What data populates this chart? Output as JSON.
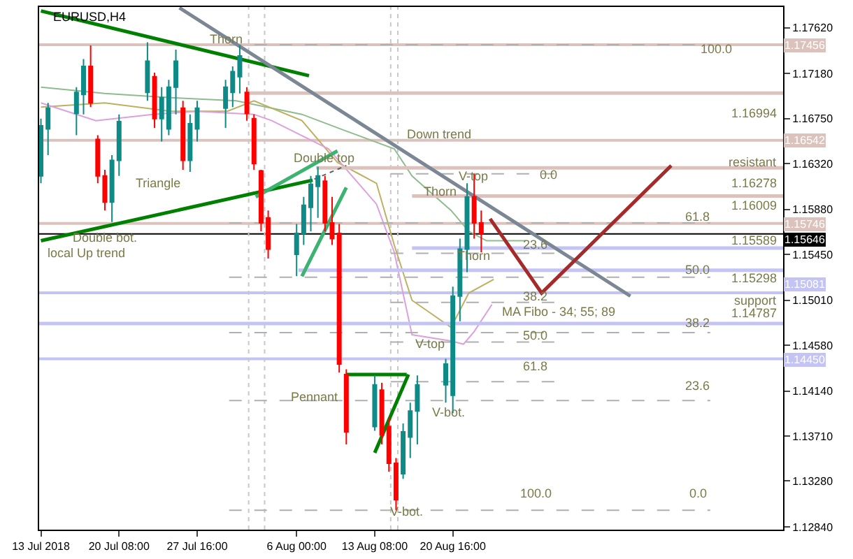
{
  "chart_data": {
    "type": "candlestick",
    "title": "EURUSD,H4",
    "grid": false,
    "xlim": [
      "2018-07-12T20:00",
      "2018-09-20T16:00"
    ],
    "xticks": [
      {
        "value": "2018-07-13T00:00",
        "label": "13 Jul 2018"
      },
      {
        "value": "2018-07-20T08:00",
        "label": "20 Jul 08:00"
      },
      {
        "value": "2018-07-27T16:00",
        "label": "27 Jul 16:00"
      },
      {
        "value": "2018-08-06T00:00",
        "label": "6 Aug 00:00"
      },
      {
        "value": "2018-08-13T08:00",
        "label": "13 Aug 08:00"
      },
      {
        "value": "2018-08-20T16:00",
        "label": "20 Aug 16:00"
      }
    ],
    "ylim": [
      1.12814,
      1.17818
    ],
    "yticks": [
      {
        "value": 1.1762,
        "label": "1.17620"
      },
      {
        "value": 1.1718,
        "label": "1.17180"
      },
      {
        "value": 1.1675,
        "label": "1.16750"
      },
      {
        "value": 1.1632,
        "label": "1.16320"
      },
      {
        "value": 1.1588,
        "label": "1.15880"
      },
      {
        "value": 1.1545,
        "label": "1.15450"
      },
      {
        "value": 1.1501,
        "label": "1.15010"
      },
      {
        "value": 1.1458,
        "label": "1.14580"
      },
      {
        "value": 1.1414,
        "label": "1.14140"
      },
      {
        "value": 1.1371,
        "label": "1.13710"
      },
      {
        "value": 1.1328,
        "label": "1.13280"
      },
      {
        "value": 1.1284,
        "label": "1.12840"
      }
    ],
    "series": [
      {
        "type": "line",
        "color": "#8fbc8f",
        "x": [
          "2018-07-13T00:00",
          "2018-07-19T00:00",
          "2018-07-25T04:00",
          "2018-07-31T08:00",
          "2018-08-06T12:00",
          "2018-08-10T16:00",
          "2018-08-15T04:00",
          "2018-08-16T20:00",
          "2018-08-20T12:00",
          "2018-08-22T04:00",
          "2018-08-23T20:00",
          "2018-08-27T12:00"
        ],
        "values": [
          1.1705,
          1.1699,
          1.1695,
          1.1692,
          1.1679,
          1.1663,
          1.1646,
          1.162,
          1.1587,
          1.1567,
          1.1558,
          1.1558
        ]
      },
      {
        "type": "line",
        "color": "#bdb060",
        "x": [
          "2018-07-13T00:00",
          "2018-07-19T00:00",
          "2018-07-25T04:00",
          "2018-07-30T12:00",
          "2018-08-02T00:00",
          "2018-08-06T12:00",
          "2018-08-09T20:00",
          "2018-08-13T12:00",
          "2018-08-15T04:00",
          "2018-08-16T20:00",
          "2018-08-20T12:00",
          "2018-08-22T04:00",
          "2018-08-24T12:00"
        ],
        "values": [
          1.1686,
          1.169,
          1.1682,
          1.1682,
          1.1692,
          1.1673,
          1.1633,
          1.1613,
          1.1554,
          1.1501,
          1.1475,
          1.1508,
          1.1521
        ]
      },
      {
        "type": "line",
        "color": "#dda0dd",
        "x": [
          "2018-07-13T00:00",
          "2018-07-18T04:00",
          "2018-07-23T12:00",
          "2018-07-27T16:00",
          "2018-08-02T00:00",
          "2018-08-03T16:00",
          "2018-08-09T00:00",
          "2018-08-13T12:00",
          "2018-08-15T04:00",
          "2018-08-16T20:00",
          "2018-08-20T12:00",
          "2018-08-21T16:00",
          "2018-08-22T16:00",
          "2018-08-24T08:00"
        ],
        "values": [
          1.169,
          1.1673,
          1.1679,
          1.1682,
          1.1679,
          1.1673,
          1.1646,
          1.1593,
          1.1547,
          1.1468,
          1.1462,
          1.1459,
          1.1471,
          1.1497
        ]
      },
      {
        "type": "line",
        "color": "#b0b0b0",
        "line_style": "dashed",
        "x": [
          "2018-07-30T16:00",
          "2018-09-13T20:00"
        ],
        "values": [
          1.17456,
          1.17456
        ]
      },
      {
        "type": "line",
        "color": "#b0b0b0",
        "line_style": "dashed",
        "x": [
          "2018-07-30T16:00",
          "2018-09-13T20:00"
        ],
        "values": [
          1.1575,
          1.1575
        ]
      },
      {
        "type": "line",
        "color": "#b0b0b0",
        "line_style": "dashed",
        "x": [
          "2018-07-30T16:00",
          "2018-09-13T20:00"
        ],
        "values": [
          1.1523,
          1.1523
        ]
      },
      {
        "type": "line",
        "color": "#b0b0b0",
        "line_style": "dashed",
        "x": [
          "2018-07-30T16:00",
          "2018-09-13T20:00"
        ],
        "values": [
          1.147,
          1.147
        ]
      },
      {
        "type": "line",
        "color": "#b0b0b0",
        "line_style": "dashed",
        "x": [
          "2018-07-30T16:00",
          "2018-09-13T20:00"
        ],
        "values": [
          1.1405,
          1.1405
        ]
      },
      {
        "type": "line",
        "color": "#b0b0b0",
        "line_style": "dashed",
        "x": [
          "2018-07-30T16:00",
          "2018-09-13T20:00"
        ],
        "values": [
          1.13,
          1.13
        ]
      },
      {
        "type": "line",
        "color": "#b0b0b0",
        "line_style": "dashed",
        "x": [
          "2018-08-14T20:00",
          "2018-08-30T08:00"
        ],
        "values": [
          1.1622,
          1.1622
        ]
      },
      {
        "type": "line",
        "color": "#b0b0b0",
        "line_style": "dashed",
        "x": [
          "2018-08-14T20:00",
          "2018-08-30T08:00"
        ],
        "values": [
          1.1546,
          1.1546
        ]
      },
      {
        "type": "line",
        "color": "#b0b0b0",
        "line_style": "dashed",
        "x": [
          "2018-08-14T20:00",
          "2018-08-30T08:00"
        ],
        "values": [
          1.1499,
          1.1499
        ]
      },
      {
        "type": "line",
        "color": "#b0b0b0",
        "line_style": "dashed",
        "x": [
          "2018-08-14T20:00",
          "2018-08-30T08:00"
        ],
        "values": [
          1.1461,
          1.1461
        ]
      },
      {
        "type": "line",
        "color": "#b0b0b0",
        "line_style": "dashed",
        "x": [
          "2018-08-14T20:00",
          "2018-08-30T08:00"
        ],
        "values": [
          1.1423,
          1.1423
        ]
      },
      {
        "type": "line",
        "color": "#dcc2bc",
        "x": [
          "2018-08-01T12:00",
          "2018-09-20T16:00"
        ],
        "values": [
          1.16994,
          1.16994
        ]
      },
      {
        "type": "line",
        "color": "#dcc2bc",
        "x": [
          "2018-08-07T20:00",
          "2018-09-20T16:00"
        ],
        "values": [
          1.16278,
          1.16278
        ]
      },
      {
        "type": "line",
        "color": "#dcc2bc",
        "x": [
          "2018-08-16T20:00",
          "2018-09-20T16:00"
        ],
        "values": [
          1.16009,
          1.16009
        ]
      },
      {
        "type": "line",
        "color": "#c4c4f4",
        "x": [
          "2018-08-16T20:00",
          "2018-09-20T16:00"
        ],
        "values": [
          1.1551,
          1.1551
        ]
      },
      {
        "type": "line",
        "color": "#c4c4f4",
        "x": [
          "2018-08-06T04:00",
          "2018-09-20T16:00"
        ],
        "values": [
          1.15298,
          1.15298
        ]
      },
      {
        "type": "line",
        "color": "#c4c4f4",
        "x": [
          "2018-07-12T20:00",
          "2018-09-20T16:00"
        ],
        "values": [
          1.14787,
          1.14787
        ]
      },
      {
        "type": "line",
        "color": "#008000",
        "x": [
          "2018-07-13T00:00",
          "2018-08-07T04:00"
        ],
        "values": [
          1.1778,
          1.1716
        ]
      },
      {
        "type": "line",
        "color": "#008000",
        "x": [
          "2018-07-13T00:00",
          "2018-08-07T12:00"
        ],
        "values": [
          1.1558,
          1.1616
        ]
      },
      {
        "type": "line",
        "color": "#3cb371",
        "x": [
          "2018-08-02T04:00",
          "2018-08-09T20:00"
        ],
        "values": [
          1.16,
          1.1644
        ]
      },
      {
        "type": "line",
        "color": "#3cb371",
        "x": [
          "2018-08-06T12:00",
          "2018-08-10T16:00"
        ],
        "values": [
          1.1524,
          1.1609
        ]
      },
      {
        "type": "line",
        "color": "#606060",
        "line_style": "dotted",
        "x": [
          "2018-08-07T16:00",
          "2018-08-10T16:00"
        ],
        "values": [
          1.1617,
          1.163
        ]
      },
      {
        "type": "line",
        "color": "#008000",
        "x": [
          "2018-08-10T16:00",
          "2018-08-16T08:00"
        ],
        "values": [
          1.143,
          1.143
        ]
      },
      {
        "type": "line",
        "color": "#008000",
        "x": [
          "2018-08-13T08:00",
          "2018-08-16T12:00"
        ],
        "values": [
          1.1355,
          1.143
        ]
      },
      {
        "type": "line",
        "color": "#7b8794",
        "x": [
          "2018-07-26T00:00",
          "2018-09-06T08:00"
        ],
        "values": [
          1.1781,
          1.1505
        ]
      },
      {
        "type": "line",
        "color": "#a52a2a",
        "x": [
          "2018-08-24T04:00",
          "2018-08-29T00:00",
          "2018-09-10T04:00"
        ],
        "values": [
          1.1579,
          1.1508,
          1.163
        ]
      },
      {
        "x": [
          "2018-07-13T00:00",
          "2018-07-13T16:00",
          "2018-07-16T08:00",
          "2018-07-17T00:00",
          "2018-07-17T16:00",
          "2018-07-18T08:00",
          "2018-07-19T00:00",
          "2018-07-19T16:00",
          "2018-07-20T08:00",
          "2018-07-23T00:00",
          "2018-07-23T16:00",
          "2018-07-24T08:00",
          "2018-07-25T00:00",
          "2018-07-25T16:00",
          "2018-07-26T08:00",
          "2018-07-27T00:00",
          "2018-07-27T16:00",
          "2018-07-30T08:00",
          "2018-07-31T00:00",
          "2018-07-31T16:00",
          "2018-08-01T08:00",
          "2018-08-02T00:00",
          "2018-08-02T16:00",
          "2018-08-03T08:00",
          "2018-08-06T00:00",
          "2018-08-06T16:00",
          "2018-08-07T08:00",
          "2018-08-08T00:00",
          "2018-08-08T16:00",
          "2018-08-09T08:00",
          "2018-08-10T00:00",
          "2018-08-10T16:00",
          "2018-08-13T08:00",
          "2018-08-14T00:00",
          "2018-08-14T16:00",
          "2018-08-15T08:00",
          "2018-08-16T00:00",
          "2018-08-16T16:00",
          "2018-08-17T08:00",
          "2018-08-20T00:00",
          "2018-08-20T16:00",
          "2018-08-21T08:00",
          "2018-08-22T00:00",
          "2018-08-22T16:00",
          "2018-08-23T08:00"
        ],
        "colors": [
          "#0e8a87",
          "#0e8a87",
          "#0e8a87",
          "#0e8a87",
          "#ff0000",
          "#ff0000",
          "#ff0000",
          "#0e8a87",
          "#0e8a87",
          "#0e8a87",
          "#ff0000",
          "#0e8a87",
          "#0e8a87",
          "#0e8a87",
          "#ff0000",
          "#0e8a87",
          "#0e8a87",
          "#0e8a87",
          "#0e8a87",
          "#0e8a87",
          "#ff0000",
          "#ff0000",
          "#ff0000",
          "#ff0000",
          "#0e8a87",
          "#0e8a87",
          "#0e8a87",
          "#0e8a87",
          "#ff0000",
          "#ff0000",
          "#ff0000",
          "#ff0000",
          "#0e8a87",
          "#ff0000",
          "#ff0000",
          "#ff0000",
          "#0e8a87",
          "#0e8a87",
          "#0e8a87",
          "#0e8a87",
          "#0e8a87",
          "#0e8a87",
          "#0e8a87",
          "#ff0000",
          "#ff0000"
        ],
        "ohlc": [
          [
            1.162,
            1.1675,
            1.1613,
            1.1668
          ],
          [
            1.1665,
            1.169,
            1.164,
            1.1685
          ],
          [
            1.168,
            1.1705,
            1.1659,
            1.17
          ],
          [
            1.1698,
            1.1732,
            1.1679,
            1.1725
          ],
          [
            1.1725,
            1.1745,
            1.1686,
            1.169
          ],
          [
            1.1655,
            1.1659,
            1.1613,
            1.162
          ],
          [
            1.162,
            1.1626,
            1.1587,
            1.1595
          ],
          [
            1.1595,
            1.164,
            1.1576,
            1.1635
          ],
          [
            1.1635,
            1.1679,
            1.162,
            1.1672
          ],
          [
            1.17,
            1.1748,
            1.1692,
            1.173
          ],
          [
            1.1715,
            1.1719,
            1.1666,
            1.1675
          ],
          [
            1.1675,
            1.1705,
            1.1653,
            1.1695
          ],
          [
            1.1665,
            1.1712,
            1.1659,
            1.1705
          ],
          [
            1.1705,
            1.1741,
            1.1679,
            1.173
          ],
          [
            1.1685,
            1.1692,
            1.1626,
            1.1635
          ],
          [
            1.1635,
            1.1679,
            1.1624,
            1.167
          ],
          [
            1.1665,
            1.1692,
            1.1653,
            1.1685
          ],
          [
            1.1685,
            1.1712,
            1.1666,
            1.1705
          ],
          [
            1.17,
            1.1725,
            1.1686,
            1.172
          ],
          [
            1.1715,
            1.1745,
            1.1699,
            1.1735
          ],
          [
            1.17,
            1.1705,
            1.1673,
            1.168
          ],
          [
            1.1675,
            1.1679,
            1.1626,
            1.1632
          ],
          [
            1.1625,
            1.1626,
            1.1567,
            1.1575
          ],
          [
            1.158,
            1.1587,
            1.1541,
            1.155
          ],
          [
            1.1545,
            1.1574,
            1.1524,
            1.1565
          ],
          [
            1.1565,
            1.16,
            1.1554,
            1.1592
          ],
          [
            1.159,
            1.162,
            1.1567,
            1.1612
          ],
          [
            1.161,
            1.1629,
            1.158,
            1.162
          ],
          [
            1.1615,
            1.162,
            1.1567,
            1.1575
          ],
          [
            1.1575,
            1.16,
            1.1554,
            1.156
          ],
          [
            1.1565,
            1.1574,
            1.1432,
            1.144
          ],
          [
            1.143,
            1.1435,
            1.1363,
            1.1375
          ],
          [
            1.138,
            1.1429,
            1.1376,
            1.142
          ],
          [
            1.1415,
            1.1422,
            1.1363,
            1.1372
          ],
          [
            1.138,
            1.1389,
            1.1337,
            1.1345
          ],
          [
            1.1345,
            1.135,
            1.13,
            1.131
          ],
          [
            1.1335,
            1.1383,
            1.133,
            1.1375
          ],
          [
            1.137,
            1.1403,
            1.135,
            1.1395
          ],
          [
            1.1395,
            1.1429,
            1.1363,
            1.142
          ],
          [
            1.142,
            1.1445,
            1.1403,
            1.144
          ],
          [
            1.141,
            1.1514,
            1.1393,
            1.1505
          ],
          [
            1.1505,
            1.156,
            1.1481,
            1.155
          ],
          [
            1.155,
            1.1613,
            1.1528,
            1.16
          ],
          [
            1.16,
            1.1622,
            1.156,
            1.1575
          ],
          [
            1.1575,
            1.1587,
            1.1547,
            1.1565
          ]
        ]
      }
    ],
    "ref_lines": [
      {
        "axis": "y",
        "value": 1.17456,
        "label": "1.17456",
        "color": "#dcc2bc"
      },
      {
        "axis": "y",
        "value": 1.16542,
        "label": "1.16542",
        "color": "#dcc2bc"
      },
      {
        "axis": "y",
        "value": 1.15746,
        "label": "1.15746",
        "color": "#dcc2bc"
      },
      {
        "axis": "y",
        "value": 1.15646,
        "label": "1.15646",
        "color": "#000000"
      },
      {
        "axis": "y",
        "value": 1.15081,
        "label": "1.15081",
        "color": "#c4c4f4"
      },
      {
        "axis": "y",
        "value": 1.1445,
        "label": "1.14450",
        "color": "#c4c4f4"
      },
      {
        "axis": "x",
        "value": "2018-08-01T12:00",
        "color": "#c8c8c8",
        "line_style": "dotted"
      },
      {
        "axis": "x",
        "value": "2018-08-03T00:00",
        "color": "#c8c8c8",
        "line_style": "dotted"
      },
      {
        "axis": "x",
        "value": "2018-08-14T20:00",
        "color": "#c8c8c8",
        "line_style": "dotted"
      },
      {
        "axis": "x",
        "value": "2018-08-15T12:00",
        "color": "#c8c8c8",
        "line_style": "dotted"
      }
    ],
    "annotations": [
      "Thorn",
      "Triangle",
      "Double bot.",
      "local Up trend",
      "Double top",
      "Down trend",
      "V-top",
      "Thorn",
      "Thorn",
      "MA Fibo - 34; 55; 89",
      "resistant",
      "support",
      "Pennant",
      "V-top",
      "V-bot.",
      "V-bot.",
      "100.0",
      "1.16994",
      "0.0",
      "1.16278",
      "1.16009",
      "61.8",
      "1.15589",
      "23.6",
      "50.0",
      "1.15298",
      "38.2",
      "1.14787",
      "38.2",
      "50.0",
      "61.8",
      "23.6",
      "100.0",
      "0.0"
    ]
  }
}
